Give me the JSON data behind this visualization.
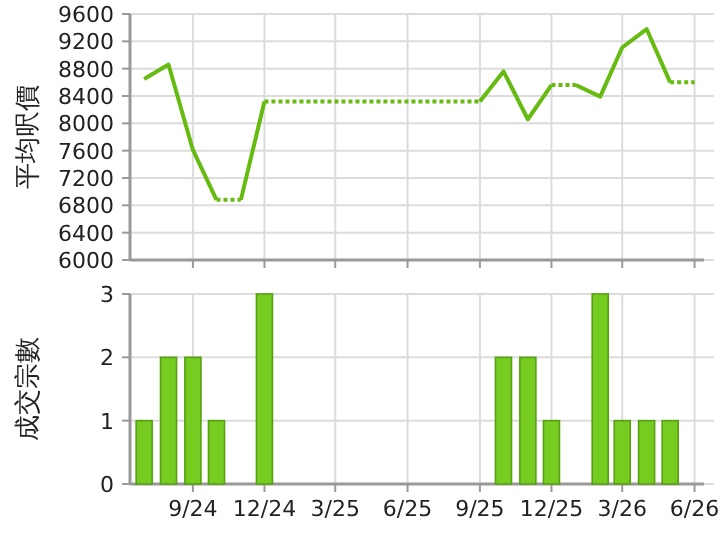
{
  "chart_data": [
    {
      "type": "line",
      "ylabel": "平均呎價",
      "xlim": [
        "2024-06-13",
        "2026-06-13"
      ],
      "ylim": [
        6000,
        9600
      ],
      "xticks": [
        {
          "value": "2024-09-01",
          "label": null
        },
        {
          "value": "2024-12-01",
          "label": null
        },
        {
          "value": "2025-03-01",
          "label": null
        },
        {
          "value": "2025-06-01",
          "label": null
        },
        {
          "value": "2025-09-01",
          "label": null
        },
        {
          "value": "2025-12-01",
          "label": null
        },
        {
          "value": "2026-03-01",
          "label": null
        },
        {
          "value": "2026-06-01",
          "label": null
        }
      ],
      "yticks": [
        6000,
        6400,
        6800,
        7200,
        7600,
        8000,
        8400,
        8800,
        9200,
        9600
      ],
      "tick_labels": "y",
      "grid": true,
      "series": [
        {
          "color": "#66bb11",
          "line_style": "solid",
          "x": [
            "2024-07",
            "2024-08",
            "2024-09",
            "2024-10"
          ],
          "values": [
            8650,
            8860,
            7610,
            6880
          ]
        },
        {
          "color": "#66bb11",
          "line_style": "dotted",
          "x": [
            "2024-10",
            "2024-11"
          ],
          "values": [
            6880,
            6880
          ]
        },
        {
          "color": "#66bb11",
          "line_style": "solid",
          "x": [
            "2024-11",
            "2024-12"
          ],
          "values": [
            6880,
            8320
          ]
        },
        {
          "color": "#66bb11",
          "line_style": "dotted",
          "x": [
            "2024-12",
            "2025-01",
            "2025-02",
            "2025-03",
            "2025-04",
            "2025-05",
            "2025-06",
            "2025-07",
            "2025-08",
            "2025-09"
          ],
          "values": [
            8320,
            8320,
            8320,
            8320,
            8320,
            8320,
            8320,
            8320,
            8320,
            8320
          ]
        },
        {
          "color": "#66bb11",
          "line_style": "solid",
          "x": [
            "2025-09",
            "2025-10",
            "2025-11",
            "2025-12"
          ],
          "values": [
            8320,
            8760,
            8060,
            8560
          ]
        },
        {
          "color": "#66bb11",
          "line_style": "dotted",
          "x": [
            "2025-12",
            "2026-01"
          ],
          "values": [
            8560,
            8560
          ]
        },
        {
          "color": "#66bb11",
          "line_style": "solid",
          "x": [
            "2026-01",
            "2026-02",
            "2026-03",
            "2026-04",
            "2026-05"
          ],
          "values": [
            8560,
            8390,
            9110,
            9380,
            8600
          ]
        },
        {
          "color": "#66bb11",
          "line_style": "dotted",
          "x": [
            "2026-05",
            "2026-06"
          ],
          "values": [
            8600,
            8600
          ]
        }
      ]
    },
    {
      "type": "bar",
      "ylabel": "成交宗數",
      "xlim": [
        "2024-06-13",
        "2026-06-13"
      ],
      "ylim": [
        0,
        3
      ],
      "xticks": [
        {
          "value": "2024-09-01",
          "label": "9/24"
        },
        {
          "value": "2024-12-01",
          "label": "12/24"
        },
        {
          "value": "2025-03-01",
          "label": "3/25"
        },
        {
          "value": "2025-06-01",
          "label": "6/25"
        },
        {
          "value": "2025-09-01",
          "label": "9/25"
        },
        {
          "value": "2025-12-01",
          "label": "12/25"
        },
        {
          "value": "2026-03-01",
          "label": "3/26"
        },
        {
          "value": "2026-06-01",
          "label": "6/26"
        }
      ],
      "yticks": [
        0,
        1,
        2,
        3
      ],
      "grid": true,
      "series": [
        {
          "color": "#77cc22",
          "x": [
            "2024-07",
            "2024-08",
            "2024-09",
            "2024-10",
            "2024-12",
            "2025-10",
            "2025-11",
            "2025-12",
            "2026-02",
            "2026-03",
            "2026-04",
            "2026-05"
          ],
          "values": [
            1,
            2,
            2,
            1,
            3,
            2,
            2,
            1,
            3,
            1,
            1,
            1
          ]
        }
      ]
    }
  ]
}
